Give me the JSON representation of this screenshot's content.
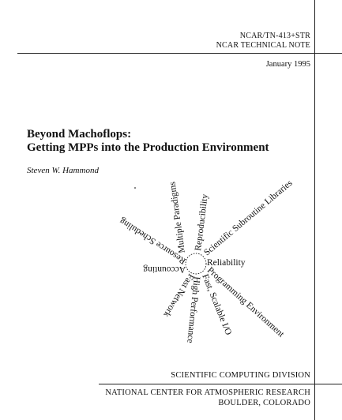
{
  "header": {
    "report_number": "NCAR/TN-413+STR",
    "series": "NCAR TECHNICAL NOTE",
    "date": "January 1995"
  },
  "title": {
    "line1": "Beyond Machoflops:",
    "line2": "Getting MPPs into the Production Environment"
  },
  "author": "Steven W. Hammond",
  "diagram": {
    "labels": [
      "Multiple Paradigms",
      "Reproducibility",
      "Scientific Subroutine Libraries",
      "Resource Scheduling",
      "Accounting",
      "Reliability",
      "Fast Network",
      "High Performance",
      "Fast, Scalable I/O",
      "Programming Environment"
    ]
  },
  "footer": {
    "division": "SCIENTIFIC COMPUTING DIVISION",
    "organization": "NATIONAL CENTER FOR ATMOSPHERIC RESEARCH",
    "location": "BOULDER, COLORADO"
  }
}
